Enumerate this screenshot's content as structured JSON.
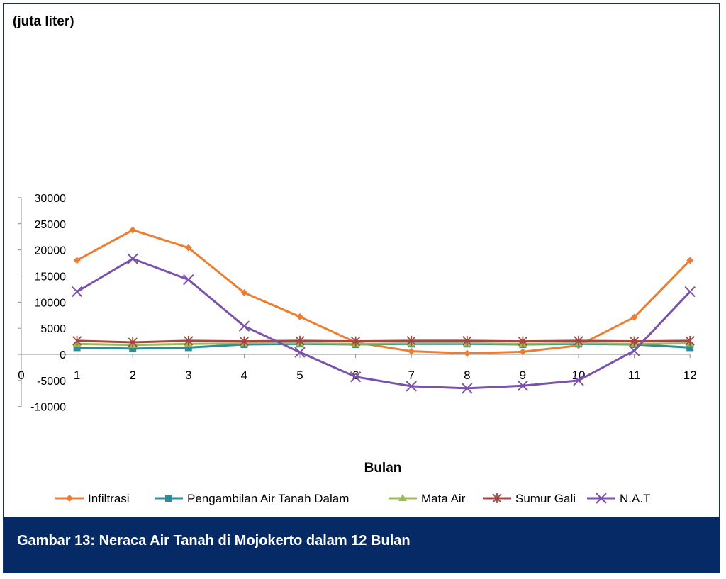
{
  "caption": "Gambar 13: Neraca Air Tanah di Mojokerto dalam 12 Bulan",
  "chart_data": {
    "type": "line",
    "title": "",
    "ylabel": "(juta liter)",
    "xlabel": "Bulan",
    "xlim": [
      0,
      12
    ],
    "ylim": [
      -10000,
      30000
    ],
    "x_ticks": [
      0,
      1,
      2,
      3,
      4,
      5,
      6,
      7,
      8,
      9,
      10,
      11,
      12
    ],
    "y_ticks": [
      -10000,
      -5000,
      0,
      5000,
      10000,
      15000,
      20000,
      25000,
      30000
    ],
    "grid": false,
    "legend_position": "bottom",
    "x": [
      1,
      2,
      3,
      4,
      5,
      6,
      7,
      8,
      9,
      10,
      11,
      12
    ],
    "series": [
      {
        "name": "Infiltrasi",
        "color": "#ed7d31",
        "marker": "diamond",
        "values": [
          18000,
          23800,
          20400,
          11800,
          7200,
          2300,
          600,
          200,
          500,
          1700,
          7100,
          18000
        ]
      },
      {
        "name": "Pengambilan Air Tanah Dalam",
        "color": "#2e8b9a",
        "marker": "square",
        "values": [
          1300,
          1100,
          1300,
          1900,
          2000,
          1900,
          2000,
          2000,
          1900,
          2000,
          1900,
          1300
        ]
      },
      {
        "name": "Mata Air",
        "color": "#9bbb59",
        "marker": "triangle",
        "values": [
          2000,
          1800,
          2000,
          2100,
          2100,
          2000,
          2100,
          2100,
          2000,
          2100,
          2000,
          2100
        ]
      },
      {
        "name": "Sumur Gali",
        "color": "#a5453f",
        "marker": "star",
        "values": [
          2600,
          2300,
          2600,
          2500,
          2600,
          2500,
          2600,
          2600,
          2500,
          2600,
          2500,
          2600
        ]
      },
      {
        "name": "N.A.T",
        "color": "#7b52ab",
        "marker": "x",
        "values": [
          12000,
          18300,
          14300,
          5400,
          400,
          -4300,
          -6100,
          -6500,
          -6000,
          -5000,
          700,
          12000
        ]
      }
    ]
  }
}
